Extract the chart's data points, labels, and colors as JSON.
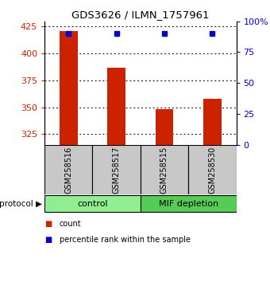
{
  "title": "GDS3626 / ILMN_1757961",
  "samples": [
    "GSM258516",
    "GSM258517",
    "GSM258515",
    "GSM258530"
  ],
  "counts": [
    421,
    387,
    348,
    358
  ],
  "percentile_ranks": [
    90,
    90,
    90,
    90
  ],
  "ylim_left": [
    315,
    430
  ],
  "ylim_right": [
    0,
    100
  ],
  "yticks_left": [
    325,
    350,
    375,
    400,
    425
  ],
  "yticks_right": [
    0,
    25,
    50,
    75,
    100
  ],
  "groups": [
    {
      "label": "control",
      "color": "#90EE90",
      "start": 0,
      "end": 2
    },
    {
      "label": "MIF depletion",
      "color": "#55CC55",
      "start": 2,
      "end": 4
    }
  ],
  "bar_color": "#CC2200",
  "dot_color": "#0000CC",
  "left_axis_color": "#CC2200",
  "right_axis_color": "#0000CC",
  "grid_color": "#000000",
  "background_color": "#ffffff",
  "plot_bg_color": "#ffffff",
  "sample_box_color": "#C8C8C8",
  "legend_items": [
    {
      "label": "count",
      "color": "#CC2200"
    },
    {
      "label": "percentile rank within the sample",
      "color": "#0000CC"
    }
  ]
}
